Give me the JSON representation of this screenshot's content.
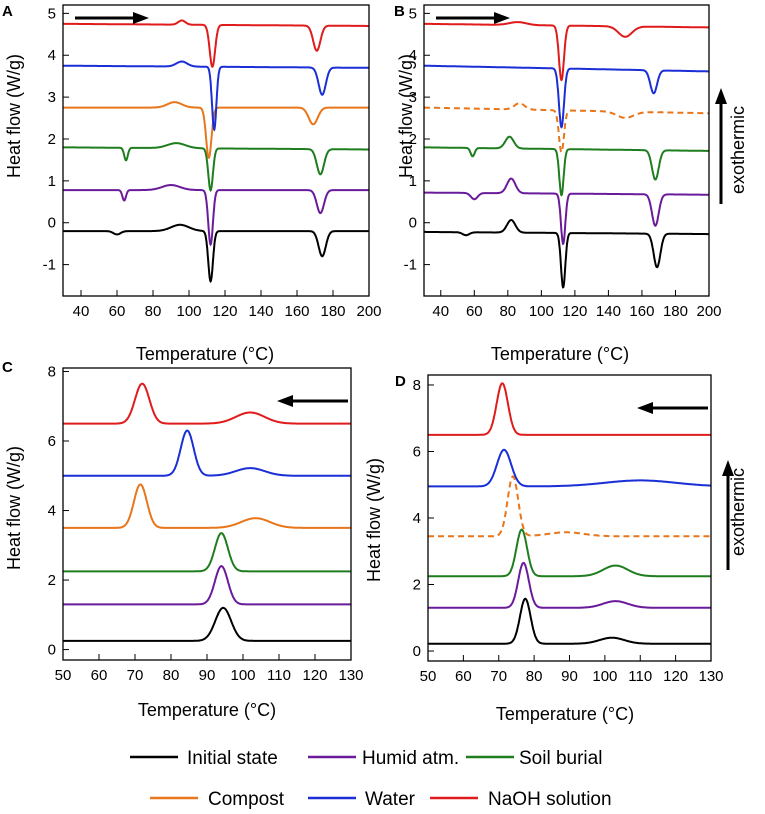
{
  "colors": {
    "initial": "#000000",
    "humid": "#6a1b9a",
    "soil": "#1e7d1e",
    "compost": "#e8761b",
    "water": "#1a2fd6",
    "naoh": "#e01b1b"
  },
  "legend": [
    {
      "key": "initial",
      "label": "Initial state"
    },
    {
      "key": "humid",
      "label": "Humid atm."
    },
    {
      "key": "soil",
      "label": "Soil burial"
    },
    {
      "key": "compost",
      "label": "Compost"
    },
    {
      "key": "water",
      "label": "Water"
    },
    {
      "key": "naoh",
      "label": "NaOH solution"
    }
  ],
  "exothermic_label": "exothermic",
  "chart_data": [
    {
      "id": "A",
      "panel_label": "A",
      "type": "line",
      "xlabel": "Temperature (°C)",
      "ylabel": "Heat flow (W/g)",
      "xlim": [
        30,
        200
      ],
      "ylim": [
        -1.75,
        5.2
      ],
      "xticks": [
        40,
        60,
        80,
        100,
        120,
        140,
        160,
        180,
        200
      ],
      "yticks": [
        -1,
        0,
        1,
        2,
        3,
        4,
        5
      ],
      "direction": "heating",
      "series": [
        {
          "key": "initial",
          "base": -0.2,
          "slope": 0,
          "features": [
            [
              60,
              2,
              -0.08
            ],
            [
              95,
              5,
              0.15
            ],
            [
              112,
              1.3,
              -1.2
            ],
            [
              174,
              2,
              -0.6
            ]
          ]
        },
        {
          "key": "humid",
          "base": 0.78,
          "slope": 0,
          "features": [
            [
              64,
              1,
              -0.25
            ],
            [
              90,
              5,
              0.12
            ],
            [
              112,
              1.3,
              -1.3
            ],
            [
              173,
              2,
              -0.55
            ]
          ]
        },
        {
          "key": "soil",
          "base": 1.8,
          "slope": -0.0003,
          "features": [
            [
              65,
              1,
              -0.3
            ],
            [
              93,
              5,
              0.12
            ],
            [
              112,
              1.3,
              -1.0
            ],
            [
              173,
              2,
              -0.6
            ]
          ]
        },
        {
          "key": "compost",
          "base": 2.75,
          "slope": 0,
          "features": [
            [
              92,
              4,
              0.13
            ],
            [
              111,
              1.5,
              -1.2
            ],
            [
              169,
              2.5,
              -0.4
            ]
          ]
        },
        {
          "key": "water",
          "base": 3.75,
          "slope": -0.0003,
          "features": [
            [
              96,
              3,
              0.12
            ],
            [
              114,
              1.2,
              -1.5
            ],
            [
              174,
              2,
              -0.65
            ]
          ]
        },
        {
          "key": "naoh",
          "base": 4.75,
          "slope": -0.0003,
          "features": [
            [
              96,
              2,
              0.1
            ],
            [
              113,
              1.5,
              -1.0
            ],
            [
              171,
              2,
              -0.6
            ]
          ]
        }
      ]
    },
    {
      "id": "B",
      "panel_label": "B",
      "type": "line",
      "xlabel": "Temperature (°C)",
      "ylabel": "Heat flow (W/g)",
      "xlim": [
        30,
        200
      ],
      "ylim": [
        -1.75,
        5.2
      ],
      "xticks": [
        40,
        60,
        80,
        100,
        120,
        140,
        160,
        180,
        200
      ],
      "yticks": [
        -1,
        0,
        1,
        2,
        3,
        4,
        5
      ],
      "direction": "heating",
      "series": [
        {
          "key": "initial",
          "base": -0.22,
          "slope": -0.0003,
          "features": [
            [
              55,
              2,
              -0.07
            ],
            [
              82,
              2.5,
              0.3
            ],
            [
              113,
              1.3,
              -1.3
            ],
            [
              169,
              2,
              -0.8
            ]
          ]
        },
        {
          "key": "humid",
          "base": 0.72,
          "slope": -0.0003,
          "features": [
            [
              60,
              2,
              -0.15
            ],
            [
              82,
              2.5,
              0.35
            ],
            [
              113,
              1.3,
              -1.2
            ],
            [
              168,
              2,
              -0.75
            ]
          ]
        },
        {
          "key": "soil",
          "base": 1.8,
          "slope": -0.0005,
          "features": [
            [
              59,
              1.2,
              -0.2
            ],
            [
              81,
              2.5,
              0.28
            ],
            [
              112,
              1.3,
              -1.1
            ],
            [
              168,
              2,
              -0.7
            ]
          ]
        },
        {
          "key": "compost",
          "base": 2.75,
          "slope": -0.0008,
          "features": [
            [
              87,
              3,
              0.15
            ],
            [
              112,
              1.5,
              -1.0
            ],
            [
              150,
              5,
              -0.15
            ]
          ],
          "dashed": true
        },
        {
          "key": "water",
          "base": 3.75,
          "slope": -0.0008,
          "features": [
            [
              112,
              1.5,
              -1.4
            ],
            [
              167,
              2,
              -0.55
            ]
          ]
        },
        {
          "key": "naoh",
          "base": 4.75,
          "slope": -0.0005,
          "features": [
            [
              86,
              5,
              0.07
            ],
            [
              112,
              1.5,
              -1.3
            ],
            [
              150,
              4,
              -0.25
            ]
          ]
        }
      ]
    },
    {
      "id": "C",
      "panel_label": "C",
      "type": "line",
      "xlabel": "Temperature (°C)",
      "ylabel": "Heat flow (W/g)",
      "xlim": [
        50,
        130
      ],
      "ylim": [
        -0.3,
        8.1
      ],
      "xticks": [
        50,
        60,
        70,
        80,
        90,
        100,
        110,
        120,
        130
      ],
      "yticks": [
        0,
        2,
        4,
        6,
        8
      ],
      "direction": "cooling",
      "series": [
        {
          "key": "initial",
          "base": 0.25,
          "slope": 0,
          "features": [
            [
              94.5,
              2.2,
              0.95
            ]
          ]
        },
        {
          "key": "humid",
          "base": 1.3,
          "slope": 0,
          "features": [
            [
              94,
              1.8,
              1.1
            ]
          ]
        },
        {
          "key": "soil",
          "base": 2.25,
          "slope": 0,
          "features": [
            [
              94,
              1.8,
              1.1
            ]
          ]
        },
        {
          "key": "compost",
          "base": 3.5,
          "slope": 0,
          "features": [
            [
              71.5,
              1.8,
              1.25
            ],
            [
              103.5,
              4,
              0.28
            ]
          ]
        },
        {
          "key": "water",
          "base": 5.0,
          "slope": 0,
          "features": [
            [
              84.5,
              1.8,
              1.3
            ],
            [
              102,
              4,
              0.22
            ]
          ]
        },
        {
          "key": "naoh",
          "base": 6.5,
          "slope": 0,
          "features": [
            [
              72,
              2,
              1.15
            ],
            [
              102,
              4,
              0.32
            ]
          ]
        }
      ]
    },
    {
      "id": "D",
      "panel_label": "D",
      "type": "line",
      "xlabel": "Temperature (°C)",
      "ylabel": "Heat flow (W/g)",
      "xlim": [
        50,
        130
      ],
      "ylim": [
        -0.3,
        8.3
      ],
      "xticks": [
        50,
        60,
        70,
        80,
        90,
        100,
        110,
        120,
        130
      ],
      "yticks": [
        0,
        2,
        4,
        6,
        8
      ],
      "direction": "cooling",
      "series": [
        {
          "key": "initial",
          "base": 0.22,
          "slope": 0,
          "features": [
            [
              77.5,
              1.5,
              1.35
            ],
            [
              102,
              3.5,
              0.18
            ]
          ]
        },
        {
          "key": "humid",
          "base": 1.3,
          "slope": 0,
          "features": [
            [
              77,
              1.5,
              1.35
            ],
            [
              103,
              3.5,
              0.2
            ]
          ]
        },
        {
          "key": "soil",
          "base": 2.25,
          "slope": 0,
          "features": [
            [
              76.5,
              1.5,
              1.4
            ],
            [
              103,
              3.5,
              0.32
            ]
          ]
        },
        {
          "key": "compost",
          "base": 3.45,
          "slope": 0,
          "features": [
            [
              74,
              1.5,
              1.8
            ],
            [
              89,
              5,
              0.12
            ]
          ],
          "dashed": true
        },
        {
          "key": "water",
          "base": 4.95,
          "slope": 0,
          "features": [
            [
              71.5,
              2,
              1.1
            ],
            [
              110,
              10,
              0.18
            ]
          ]
        },
        {
          "key": "naoh",
          "base": 6.5,
          "slope": 0,
          "features": [
            [
              71,
              1.6,
              1.55
            ]
          ]
        }
      ]
    }
  ]
}
